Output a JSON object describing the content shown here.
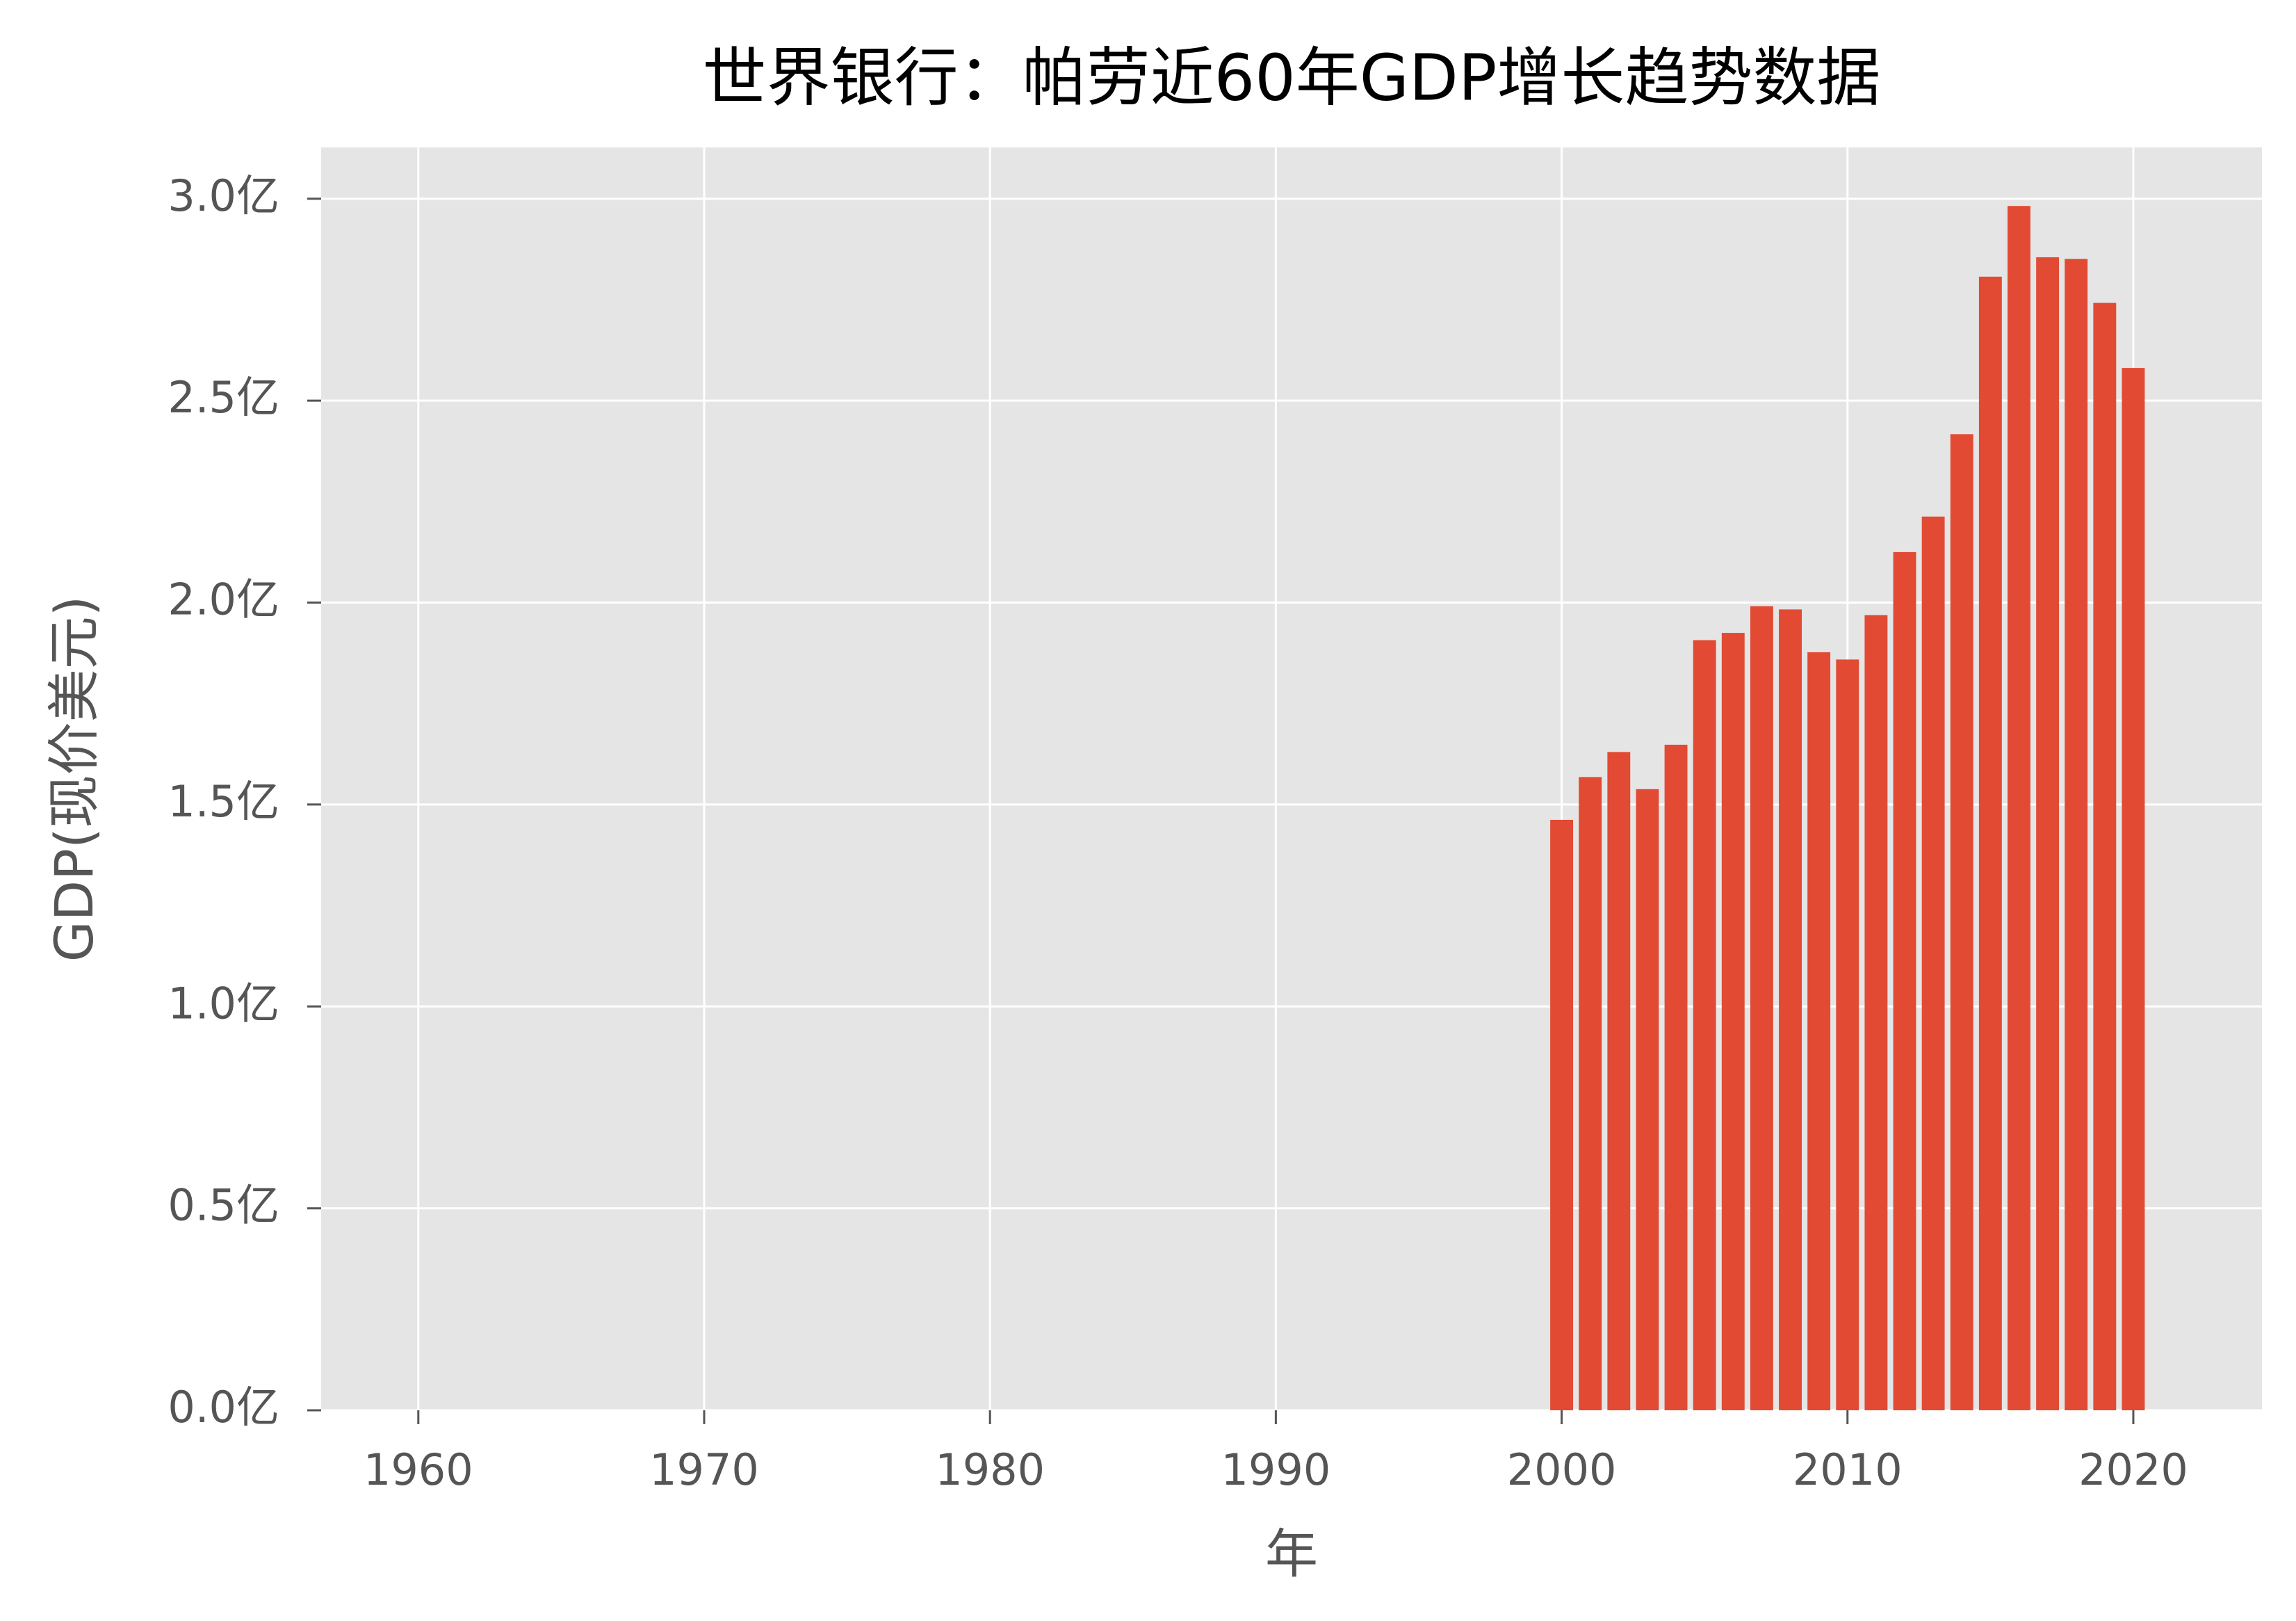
{
  "chart_data": {
    "type": "bar",
    "title": "世界银行：帕劳近60年GDP增长趋势数据",
    "x_label": "年",
    "y_label": "GDP(现价美元)",
    "x": [
      2000,
      2001,
      2002,
      2003,
      2004,
      2005,
      2006,
      2007,
      2008,
      2009,
      2010,
      2011,
      2012,
      2013,
      2014,
      2015,
      2016,
      2017,
      2018,
      2019,
      2020
    ],
    "values": [
      146200000,
      156800000,
      163000000,
      153800000,
      164800000,
      190700000,
      192500000,
      199100000,
      198300000,
      187700000,
      185900000,
      196900000,
      212500000,
      221300000,
      241700000,
      280700000,
      298200000,
      285500000,
      285100000,
      274200000,
      258100000
    ],
    "color": "#e24a33",
    "xlim": [
      1956.6,
      2024.5
    ],
    "xticks": [
      1960,
      1970,
      1980,
      1990,
      2000,
      2010,
      2020
    ],
    "ylim": [
      0,
      312700000
    ],
    "yticks": [
      {
        "value": 0,
        "label": "0.0亿"
      },
      {
        "value": 50000000,
        "label": "0.5亿"
      },
      {
        "value": 100000000,
        "label": "1.0亿"
      },
      {
        "value": 150000000,
        "label": "1.5亿"
      },
      {
        "value": 200000000,
        "label": "2.0亿"
      },
      {
        "value": 250000000,
        "label": "2.5亿"
      },
      {
        "value": 300000000,
        "label": "3.0亿"
      }
    ],
    "grid": true
  }
}
